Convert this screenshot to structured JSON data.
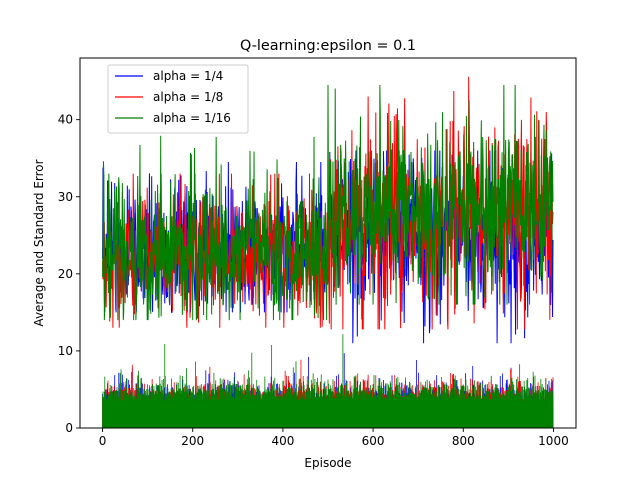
{
  "chart_data": {
    "type": "line",
    "title": "Q-learning:epsilon = 0.1",
    "xlabel": "Episode",
    "ylabel": "Average and Standard Error",
    "xlim": [
      -50,
      1050
    ],
    "ylim": [
      0,
      48
    ],
    "xticks": [
      0,
      200,
      400,
      600,
      800,
      1000
    ],
    "yticks": [
      0,
      10,
      20,
      30,
      40
    ],
    "xtick_labels": [
      "0",
      "200",
      "400",
      "600",
      "800",
      "1000"
    ],
    "ytick_labels": [
      "0",
      "10",
      "20",
      "30",
      "40"
    ],
    "grid": false,
    "legend_position": "upper-left",
    "episodes": 1000,
    "series": [
      {
        "name": "alpha = 1/4",
        "color": "#0000ff",
        "segments": [
          {
            "x_range": [
              0,
              500
            ],
            "mean": 22.5,
            "spread": 4.0,
            "min": 15.0,
            "max": 34.5
          },
          {
            "x_range": [
              500,
              1000
            ],
            "mean": 24.5,
            "spread": 5.0,
            "min": 11.0,
            "max": 36.0
          }
        ],
        "error_bars": {
          "mean": 3.0,
          "max": 9.8
        }
      },
      {
        "name": "alpha = 1/8",
        "color": "#ff0000",
        "segments": [
          {
            "x_range": [
              0,
              500
            ],
            "mean": 22.5,
            "spread": 4.0,
            "min": 13.0,
            "max": 33.0
          },
          {
            "x_range": [
              500,
              1000
            ],
            "mean": 27.0,
            "spread": 6.0,
            "min": 12.8,
            "max": 46.8
          }
        ],
        "error_bars": {
          "mean": 3.2,
          "max": 9.0
        }
      },
      {
        "name": "alpha = 1/16",
        "color": "#008000",
        "segments": [
          {
            "x_range": [
              0,
              500
            ],
            "mean": 23.0,
            "spread": 4.5,
            "min": 14.0,
            "max": 38.0
          },
          {
            "x_range": [
              500,
              1000
            ],
            "mean": 28.5,
            "spread": 5.5,
            "min": 16.0,
            "max": 44.5
          }
        ],
        "error_bars": {
          "mean": 3.5,
          "max": 12.8
        }
      }
    ]
  }
}
